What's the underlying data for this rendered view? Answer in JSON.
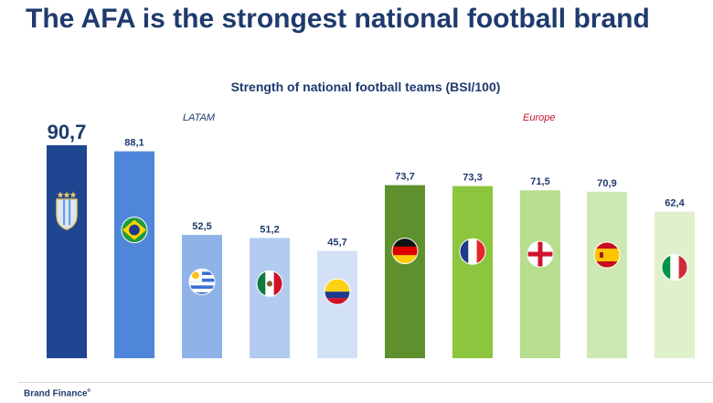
{
  "slide": {
    "title": "The AFA is the strongest national football brand",
    "footer_brand": "Brand Finance"
  },
  "colors": {
    "title": "#1f3a6e",
    "latam": "#1f3a6e",
    "europe": "#c0152f"
  },
  "chart_data": {
    "type": "bar",
    "title": "Strength of national football teams (BSI/100)",
    "xlabel": "",
    "ylabel": "",
    "ylim": [
      0,
      100
    ],
    "groups": [
      {
        "label": "LATAM",
        "color": "#1f3a6e"
      },
      {
        "label": "Europe",
        "color": "#c0152f"
      }
    ],
    "bars": [
      {
        "value": 90.7,
        "label": "90,7",
        "group": "LATAM",
        "color": "#1f4690",
        "flag": "argentina-afa-crest"
      },
      {
        "value": 88.1,
        "label": "88,1",
        "group": "LATAM",
        "color": "#4f86d9",
        "flag": "brazil"
      },
      {
        "value": 52.5,
        "label": "52,5",
        "group": "LATAM",
        "color": "#8fb2e8",
        "flag": "uruguay"
      },
      {
        "value": 51.2,
        "label": "51,2",
        "group": "LATAM",
        "color": "#b3cbef",
        "flag": "mexico"
      },
      {
        "value": 45.7,
        "label": "45,7",
        "group": "LATAM",
        "color": "#d3e1f6",
        "flag": "colombia"
      },
      {
        "value": 73.7,
        "label": "73,7",
        "group": "Europe",
        "color": "#5f902e",
        "flag": "germany"
      },
      {
        "value": 73.3,
        "label": "73,3",
        "group": "Europe",
        "color": "#8cc63f",
        "flag": "france"
      },
      {
        "value": 71.5,
        "label": "71,5",
        "group": "Europe",
        "color": "#b7dd8e",
        "flag": "england"
      },
      {
        "value": 70.9,
        "label": "70,9",
        "group": "Europe",
        "color": "#cde8b0",
        "flag": "spain"
      },
      {
        "value": 62.4,
        "label": "62,4",
        "group": "Europe",
        "color": "#e0f0cd",
        "flag": "italy"
      }
    ]
  }
}
